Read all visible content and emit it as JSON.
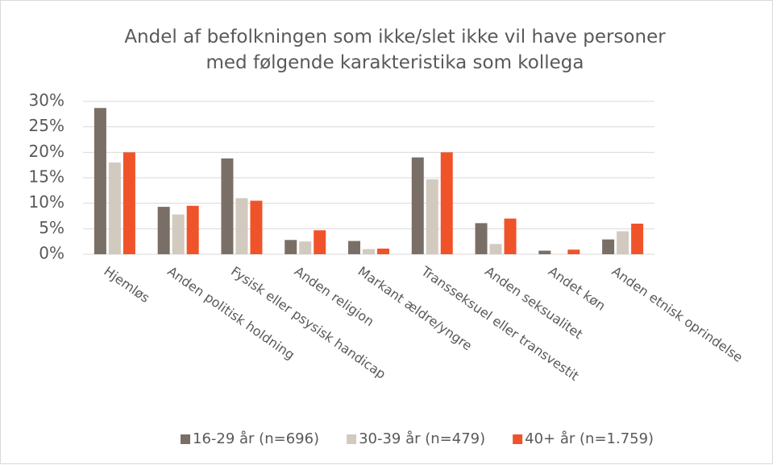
{
  "chart_data": {
    "type": "bar",
    "title": "Andel af befolkningen som ikke/slet ikke vil have personer med følgende karakteristika som kollega",
    "categories": [
      "Hjemløs",
      "Anden politisk holdning",
      "Fysisk eller psysisk handicap",
      "Anden religion",
      "Markant ældre/yngre",
      "Transseksuel eller transvestit",
      "Anden seksualitet",
      "Andet køn",
      "Anden etnisk oprindelse"
    ],
    "series": [
      {
        "name": "16-29 år (n=696)",
        "color": "#7a6f66",
        "values": [
          28.7,
          9.3,
          18.8,
          2.8,
          2.6,
          19.0,
          6.1,
          0.7,
          2.9
        ]
      },
      {
        "name": "30-39 år (n=479)",
        "color": "#d2c9bf",
        "values": [
          18.0,
          7.8,
          11.0,
          2.5,
          1.0,
          14.7,
          2.0,
          0,
          4.5
        ]
      },
      {
        "name": "40+ år (n=1.759)",
        "color": "#f0532a",
        "values": [
          20.0,
          9.5,
          10.5,
          4.7,
          1.1,
          20.0,
          7.0,
          0.9,
          6.0
        ]
      }
    ],
    "ylim": [
      0,
      30
    ],
    "yticks": [
      {
        "value": 0,
        "label": "0%"
      },
      {
        "value": 5,
        "label": "5%"
      },
      {
        "value": 10,
        "label": "10%"
      },
      {
        "value": 15,
        "label": "15%"
      },
      {
        "value": 20,
        "label": "20%"
      },
      {
        "value": 25,
        "label": "25%"
      },
      {
        "value": 30,
        "label": "30%"
      }
    ],
    "grid": true,
    "legend": "bottom"
  }
}
